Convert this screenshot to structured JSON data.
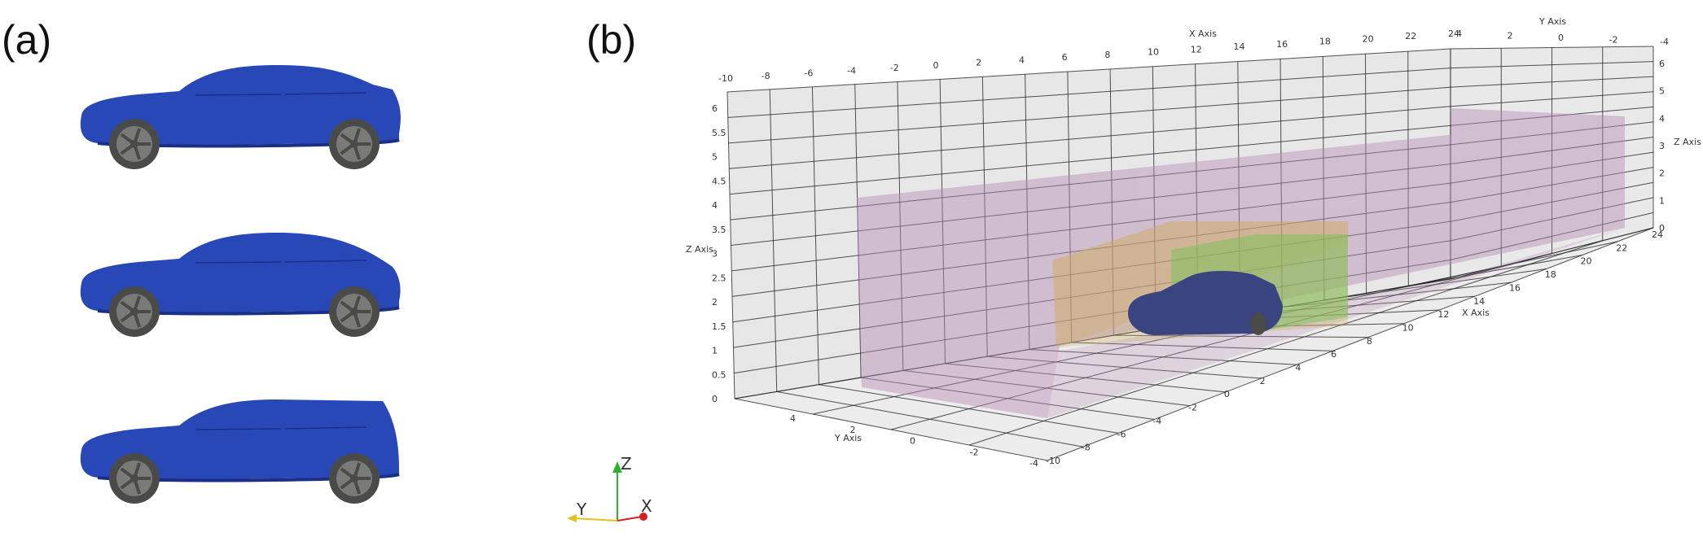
{
  "panel_labels": {
    "a": "(a)",
    "b": "(b)"
  },
  "cars": [
    {
      "variant": "notchback"
    },
    {
      "variant": "fastback"
    },
    {
      "variant": "estateback"
    }
  ],
  "colors": {
    "car_body": "#2848b8",
    "car_body_shadow": "#1a2f85",
    "wheel": "#7a7a78",
    "wheel_dark": "#4a4a48",
    "box_outer": "#b88bb6",
    "box_middle": "#cfae5e",
    "box_inner": "#7fbf5a",
    "car_3d": "#3a4480",
    "grid_wall": "#d4d4d4",
    "grid_line": "#1a1a1a",
    "triad_x": "#d62020",
    "triad_y": "#e6c020",
    "triad_z": "#30b030"
  },
  "triad": {
    "x_label": "X",
    "y_label": "Y",
    "z_label": "Z"
  },
  "axes": {
    "x_title": "X Axis",
    "y_title": "Y Axis",
    "z_title": "Z Axis",
    "x_top_ticks": [
      "-10",
      "-8",
      "-6",
      "-4",
      "-2",
      "0",
      "2",
      "4",
      "6",
      "8",
      "10",
      "12",
      "14",
      "16",
      "18",
      "20",
      "22",
      "24"
    ],
    "y_top_ticks": [
      "4",
      "2",
      "0",
      "-2",
      "-4"
    ],
    "z_left_ticks": [
      "0",
      "0.5",
      "1",
      "1.5",
      "2",
      "2.5",
      "3",
      "3.5",
      "4",
      "4.5",
      "5",
      "5.5",
      "6"
    ],
    "z_right_ticks": [
      "0",
      "1",
      "2",
      "3",
      "4",
      "5",
      "6"
    ],
    "y_bottom_ticks": [
      "4",
      "2",
      "0",
      "-2",
      "-4"
    ],
    "x_bottom_ticks": [
      "-10",
      "-8",
      "-6",
      "-4",
      "-2",
      "0",
      "2",
      "4",
      "6",
      "8",
      "10",
      "12",
      "14",
      "16",
      "18",
      "20",
      "22",
      "24"
    ]
  }
}
